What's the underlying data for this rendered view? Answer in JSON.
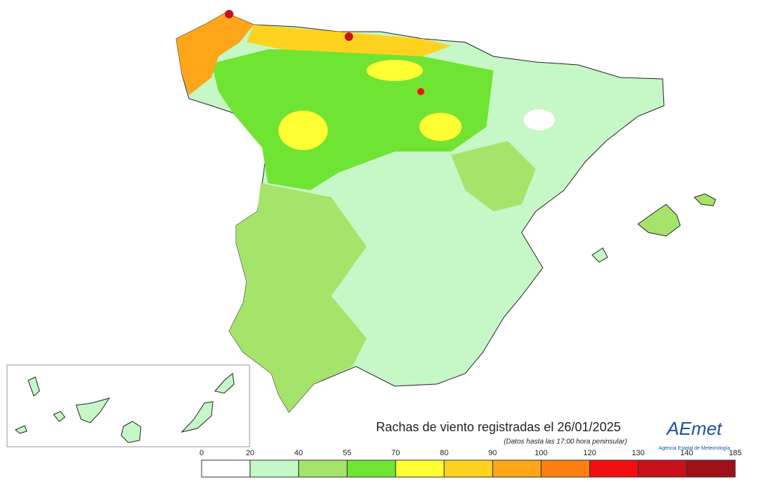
{
  "map": {
    "title": "Rachas de viento registradas el 26/01/2025",
    "subtitle": "(Datos hasta las 17:00 hora peninsular)",
    "logo": "AEmet",
    "logo_tagline": "Agencia Estatal de Meteorología"
  },
  "legend": {
    "ticks": [
      0,
      20,
      40,
      55,
      70,
      80,
      90,
      100,
      120,
      130,
      140,
      185
    ],
    "colors": [
      "#ffffff",
      "#c6f7c6",
      "#a6e36a",
      "#70e432",
      "#ffff33",
      "#ffd21f",
      "#ffa51a",
      "#ff7f10",
      "#f01010",
      "#c8101a",
      "#a0101a"
    ]
  }
}
